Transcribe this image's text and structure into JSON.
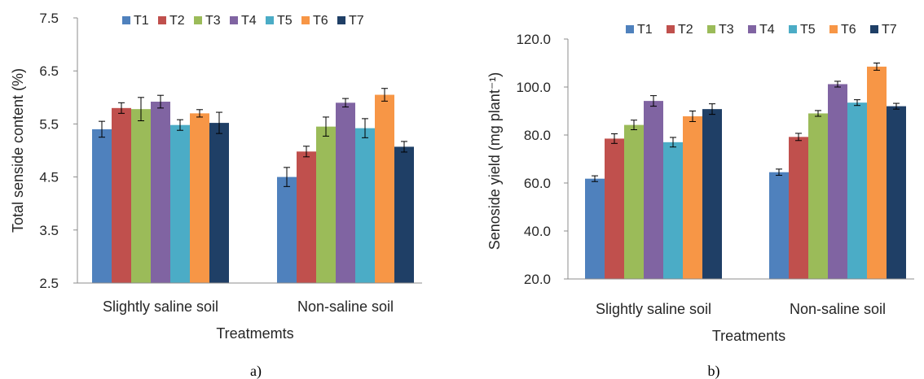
{
  "colors": {
    "T1": "#4f81bd",
    "T2": "#c0504d",
    "T3": "#9bbb59",
    "T4": "#8064a2",
    "T5": "#4bacc6",
    "T6": "#f79646",
    "T7": "#1f3f66",
    "axis": "#8c8c8c",
    "error_bar": "#000000"
  },
  "chart_data": [
    {
      "type": "bar",
      "panel_label": "a)",
      "ylabel": "Total senside content (%)",
      "xlabel": "Treatmemts",
      "categories": [
        "Slightly saline soil",
        "Non-saline soil"
      ],
      "ylim": [
        2.5,
        7.5
      ],
      "yticks": [
        "2.5",
        "3.5",
        "4.5",
        "5.5",
        "6.5",
        "7.5"
      ],
      "grid": false,
      "legend_position": "top",
      "series": [
        {
          "name": "T1",
          "values": [
            5.4,
            4.5
          ],
          "errors": [
            0.15,
            0.18
          ]
        },
        {
          "name": "T2",
          "values": [
            5.8,
            4.98
          ],
          "errors": [
            0.1,
            0.1
          ]
        },
        {
          "name": "T3",
          "values": [
            5.78,
            5.45
          ],
          "errors": [
            0.22,
            0.18
          ]
        },
        {
          "name": "T4",
          "values": [
            5.92,
            5.9
          ],
          "errors": [
            0.12,
            0.08
          ]
        },
        {
          "name": "T5",
          "values": [
            5.48,
            5.42
          ],
          "errors": [
            0.1,
            0.18
          ]
        },
        {
          "name": "T6",
          "values": [
            5.7,
            6.05
          ],
          "errors": [
            0.07,
            0.12
          ]
        },
        {
          "name": "T7",
          "values": [
            5.52,
            5.07
          ],
          "errors": [
            0.2,
            0.1
          ]
        }
      ]
    },
    {
      "type": "bar",
      "panel_label": "b)",
      "ylabel": "Senoside yield (mg plant⁻¹)",
      "xlabel": "Treatments",
      "categories": [
        "Slightly saline soil",
        "Non-saline soil"
      ],
      "ylim": [
        20.0,
        120.0
      ],
      "yticks": [
        "20.0",
        "40.0",
        "60.0",
        "80.0",
        "100.0",
        "120.0"
      ],
      "grid": false,
      "legend_position": "top",
      "series": [
        {
          "name": "T1",
          "values": [
            61.8,
            64.5
          ],
          "errors": [
            1.2,
            1.3
          ]
        },
        {
          "name": "T2",
          "values": [
            78.5,
            79.2
          ],
          "errors": [
            2.0,
            1.5
          ]
        },
        {
          "name": "T3",
          "values": [
            84.2,
            89.0
          ],
          "errors": [
            2.0,
            1.2
          ]
        },
        {
          "name": "T4",
          "values": [
            94.2,
            101.2
          ],
          "errors": [
            2.2,
            1.2
          ]
        },
        {
          "name": "T5",
          "values": [
            77.0,
            93.5
          ],
          "errors": [
            2.0,
            1.2
          ]
        },
        {
          "name": "T6",
          "values": [
            87.8,
            108.5
          ],
          "errors": [
            2.2,
            1.5
          ]
        },
        {
          "name": "T7",
          "values": [
            90.8,
            92.0
          ],
          "errors": [
            2.2,
            1.2
          ]
        }
      ]
    }
  ]
}
